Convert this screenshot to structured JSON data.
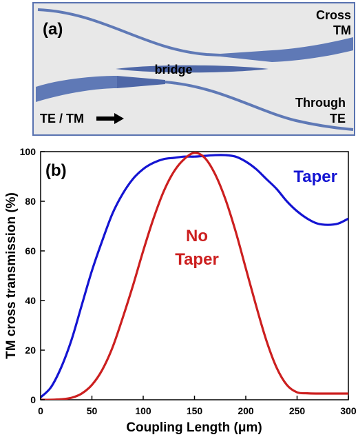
{
  "panel_a": {
    "label": "(a)",
    "cross_line1": "Cross",
    "cross_line2": "TM",
    "through_line1": "Through",
    "through_line2": "TE",
    "bridge": "bridge",
    "input": "TE / TM",
    "colors": {
      "background": "#e8e8e8",
      "waveguide": "#5f79b6",
      "waveguide_dark": "#4e67a7",
      "border": "#5872b0"
    }
  },
  "chart_data": {
    "type": "line",
    "panel_label": "(b)",
    "xlabel": "Coupling Length (μm)",
    "ylabel": "TM cross transmission (%)",
    "xlim": [
      0,
      300
    ],
    "ylim": [
      0,
      100
    ],
    "xticks": [
      0,
      50,
      100,
      150,
      200,
      250,
      300
    ],
    "yticks": [
      0,
      20,
      40,
      60,
      80,
      100
    ],
    "grid": false,
    "series": [
      {
        "name": "Taper",
        "name_lines": [
          "Taper"
        ],
        "color": "#1414d2",
        "x": [
          0,
          10,
          20,
          30,
          40,
          50,
          60,
          70,
          80,
          90,
          100,
          110,
          120,
          130,
          140,
          150,
          160,
          170,
          180,
          190,
          200,
          210,
          220,
          230,
          240,
          250,
          260,
          270,
          280,
          290,
          300
        ],
        "y": [
          1,
          5,
          13,
          24,
          38,
          52,
          64,
          75,
          83,
          89,
          93,
          95.5,
          97,
          97.5,
          98,
          98,
          98.3,
          98.6,
          98.6,
          98,
          96,
          93,
          89,
          85,
          80,
          76,
          73,
          71,
          70.5,
          71,
          73
        ]
      },
      {
        "name": "No Taper",
        "name_lines": [
          "No",
          "Taper"
        ],
        "color": "#cc1f1f",
        "x": [
          0,
          10,
          20,
          30,
          40,
          50,
          60,
          70,
          80,
          90,
          100,
          110,
          120,
          130,
          140,
          150,
          160,
          170,
          180,
          190,
          200,
          210,
          220,
          230,
          240,
          250,
          260,
          270,
          280,
          290,
          300
        ],
        "y": [
          0,
          0,
          0.2,
          0.8,
          2.5,
          6,
          12,
          21,
          33,
          46,
          60,
          73,
          84,
          92,
          97,
          99.5,
          97.5,
          91,
          81,
          68,
          53,
          38,
          24,
          13,
          6,
          3,
          2.6,
          2.5,
          2.5,
          2.5,
          2.5
        ]
      }
    ]
  }
}
